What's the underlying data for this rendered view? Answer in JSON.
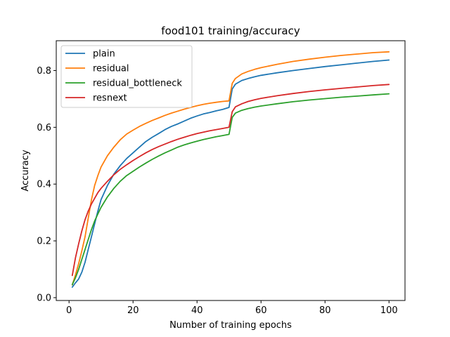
{
  "chart_data": {
    "type": "line",
    "title": "food101 training/accuracy",
    "xlabel": "Number of training epochs",
    "ylabel": "Accuracy",
    "xlim": [
      -4,
      105
    ],
    "ylim": [
      -0.01,
      0.905
    ],
    "xticks": [
      0,
      20,
      40,
      60,
      80,
      100
    ],
    "yticks": [
      0.0,
      0.2,
      0.4,
      0.6,
      0.8
    ],
    "ytick_labels": [
      "0.0",
      "0.2",
      "0.4",
      "0.6",
      "0.8"
    ],
    "grid": false,
    "legend_position": "top-left",
    "series": [
      {
        "name": "plain",
        "color": "#1f77b4",
        "points": [
          [
            1,
            0.037
          ],
          [
            2,
            0.052
          ],
          [
            3,
            0.066
          ],
          [
            4,
            0.09
          ],
          [
            5,
            0.125
          ],
          [
            6,
            0.17
          ],
          [
            7,
            0.215
          ],
          [
            8,
            0.26
          ],
          [
            9,
            0.305
          ],
          [
            10,
            0.345
          ],
          [
            12,
            0.395
          ],
          [
            14,
            0.435
          ],
          [
            16,
            0.465
          ],
          [
            18,
            0.49
          ],
          [
            20,
            0.51
          ],
          [
            22,
            0.53
          ],
          [
            24,
            0.55
          ],
          [
            26,
            0.565
          ],
          [
            28,
            0.578
          ],
          [
            30,
            0.592
          ],
          [
            32,
            0.603
          ],
          [
            34,
            0.612
          ],
          [
            36,
            0.622
          ],
          [
            38,
            0.632
          ],
          [
            40,
            0.64
          ],
          [
            42,
            0.647
          ],
          [
            44,
            0.652
          ],
          [
            46,
            0.658
          ],
          [
            48,
            0.663
          ],
          [
            50,
            0.67
          ],
          [
            51,
            0.735
          ],
          [
            52,
            0.752
          ],
          [
            54,
            0.765
          ],
          [
            56,
            0.772
          ],
          [
            58,
            0.778
          ],
          [
            60,
            0.783
          ],
          [
            65,
            0.792
          ],
          [
            70,
            0.8
          ],
          [
            75,
            0.807
          ],
          [
            80,
            0.814
          ],
          [
            85,
            0.82
          ],
          [
            90,
            0.826
          ],
          [
            95,
            0.832
          ],
          [
            100,
            0.837
          ]
        ]
      },
      {
        "name": "residual",
        "color": "#ff7f0e",
        "points": [
          [
            1,
            0.045
          ],
          [
            2,
            0.08
          ],
          [
            3,
            0.12
          ],
          [
            4,
            0.165
          ],
          [
            5,
            0.215
          ],
          [
            6,
            0.28
          ],
          [
            7,
            0.345
          ],
          [
            8,
            0.395
          ],
          [
            9,
            0.43
          ],
          [
            10,
            0.46
          ],
          [
            12,
            0.5
          ],
          [
            14,
            0.53
          ],
          [
            16,
            0.556
          ],
          [
            18,
            0.576
          ],
          [
            20,
            0.59
          ],
          [
            22,
            0.603
          ],
          [
            24,
            0.614
          ],
          [
            26,
            0.624
          ],
          [
            28,
            0.633
          ],
          [
            30,
            0.642
          ],
          [
            32,
            0.65
          ],
          [
            34,
            0.657
          ],
          [
            36,
            0.664
          ],
          [
            38,
            0.67
          ],
          [
            40,
            0.676
          ],
          [
            42,
            0.681
          ],
          [
            44,
            0.685
          ],
          [
            46,
            0.688
          ],
          [
            48,
            0.691
          ],
          [
            50,
            0.693
          ],
          [
            51,
            0.755
          ],
          [
            52,
            0.772
          ],
          [
            54,
            0.788
          ],
          [
            56,
            0.797
          ],
          [
            58,
            0.804
          ],
          [
            60,
            0.81
          ],
          [
            65,
            0.822
          ],
          [
            70,
            0.832
          ],
          [
            75,
            0.84
          ],
          [
            80,
            0.847
          ],
          [
            85,
            0.853
          ],
          [
            90,
            0.858
          ],
          [
            95,
            0.863
          ],
          [
            100,
            0.866
          ]
        ]
      },
      {
        "name": "residual_bottleneck",
        "color": "#2ca02c",
        "points": [
          [
            1,
            0.046
          ],
          [
            2,
            0.07
          ],
          [
            3,
            0.1
          ],
          [
            4,
            0.135
          ],
          [
            5,
            0.17
          ],
          [
            6,
            0.205
          ],
          [
            7,
            0.24
          ],
          [
            8,
            0.27
          ],
          [
            9,
            0.295
          ],
          [
            10,
            0.318
          ],
          [
            12,
            0.355
          ],
          [
            14,
            0.385
          ],
          [
            16,
            0.41
          ],
          [
            18,
            0.43
          ],
          [
            20,
            0.445
          ],
          [
            22,
            0.46
          ],
          [
            24,
            0.474
          ],
          [
            26,
            0.487
          ],
          [
            28,
            0.499
          ],
          [
            30,
            0.51
          ],
          [
            32,
            0.52
          ],
          [
            34,
            0.53
          ],
          [
            36,
            0.538
          ],
          [
            38,
            0.545
          ],
          [
            40,
            0.551
          ],
          [
            42,
            0.557
          ],
          [
            44,
            0.562
          ],
          [
            46,
            0.567
          ],
          [
            48,
            0.571
          ],
          [
            50,
            0.575
          ],
          [
            51,
            0.635
          ],
          [
            52,
            0.65
          ],
          [
            54,
            0.66
          ],
          [
            56,
            0.666
          ],
          [
            58,
            0.671
          ],
          [
            60,
            0.675
          ],
          [
            65,
            0.683
          ],
          [
            70,
            0.69
          ],
          [
            75,
            0.696
          ],
          [
            80,
            0.701
          ],
          [
            85,
            0.706
          ],
          [
            90,
            0.71
          ],
          [
            95,
            0.714
          ],
          [
            100,
            0.718
          ]
        ]
      },
      {
        "name": "resnext",
        "color": "#d62728",
        "points": [
          [
            1,
            0.078
          ],
          [
            2,
            0.14
          ],
          [
            3,
            0.19
          ],
          [
            4,
            0.235
          ],
          [
            5,
            0.275
          ],
          [
            6,
            0.305
          ],
          [
            7,
            0.33
          ],
          [
            8,
            0.35
          ],
          [
            9,
            0.37
          ],
          [
            10,
            0.385
          ],
          [
            12,
            0.41
          ],
          [
            14,
            0.433
          ],
          [
            16,
            0.452
          ],
          [
            18,
            0.468
          ],
          [
            20,
            0.483
          ],
          [
            22,
            0.497
          ],
          [
            24,
            0.51
          ],
          [
            26,
            0.522
          ],
          [
            28,
            0.532
          ],
          [
            30,
            0.541
          ],
          [
            32,
            0.55
          ],
          [
            34,
            0.558
          ],
          [
            36,
            0.565
          ],
          [
            38,
            0.572
          ],
          [
            40,
            0.578
          ],
          [
            42,
            0.583
          ],
          [
            44,
            0.588
          ],
          [
            46,
            0.592
          ],
          [
            48,
            0.596
          ],
          [
            50,
            0.6
          ],
          [
            51,
            0.655
          ],
          [
            52,
            0.672
          ],
          [
            54,
            0.683
          ],
          [
            56,
            0.691
          ],
          [
            58,
            0.697
          ],
          [
            60,
            0.702
          ],
          [
            65,
            0.711
          ],
          [
            70,
            0.719
          ],
          [
            75,
            0.726
          ],
          [
            80,
            0.732
          ],
          [
            85,
            0.737
          ],
          [
            90,
            0.742
          ],
          [
            95,
            0.747
          ],
          [
            100,
            0.751
          ]
        ]
      }
    ]
  }
}
